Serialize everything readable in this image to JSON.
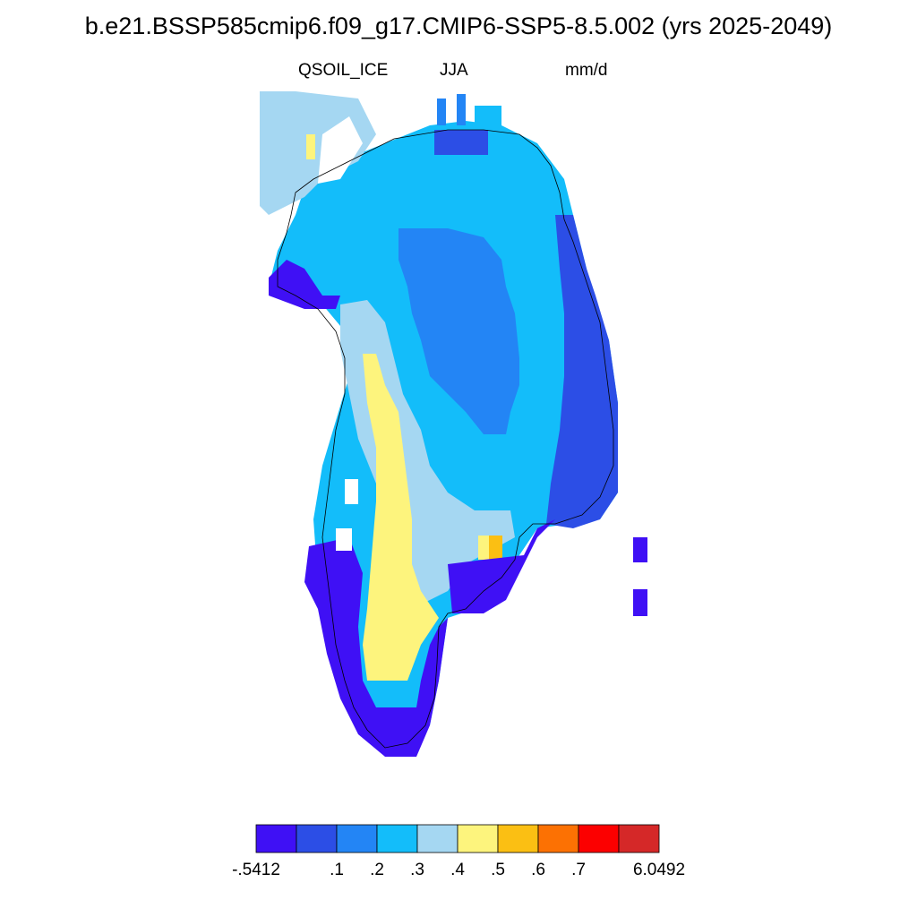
{
  "title": "b.e21.BSSP585cmip6.f09_g17.CMIP6-SSP5-8.5.002 (yrs 2025-2049)",
  "variable": "QSOIL_ICE",
  "season": "JJA",
  "units": "mm/d",
  "colorbar": {
    "colors": [
      "#3f10f5",
      "#2c4ee6",
      "#2385f5",
      "#13bdfa",
      "#a5d7f2",
      "#fdf47d",
      "#fbbf13",
      "#fc7103",
      "#fc0000",
      "#d52828"
    ],
    "tick_labels": [
      "-.5412",
      ".1",
      ".2",
      ".3",
      ".4",
      ".5",
      ".6",
      ".7",
      "6.0492"
    ]
  }
}
